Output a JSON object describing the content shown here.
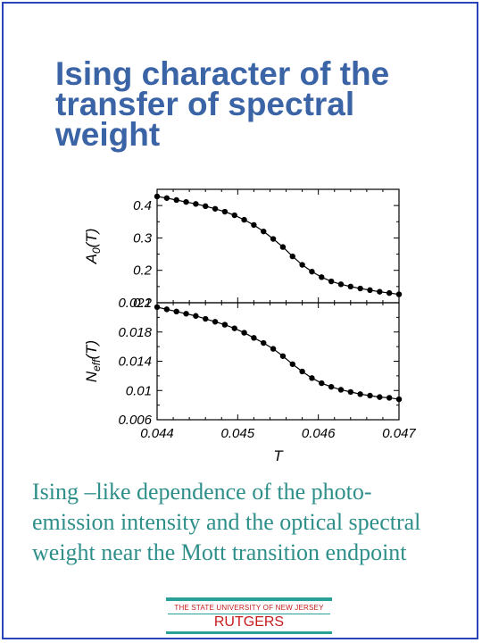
{
  "slide": {
    "title_lines": [
      "Ising character of the",
      "transfer of spectral",
      "weight"
    ],
    "caption_lines": [
      " Ising –like dependence of the photo-",
      "emission intensity and the optical spectral",
      "weight near the Mott transition endpoint"
    ],
    "logo": {
      "university": "THE STATE UNIVERSITY OF NEW JERSEY",
      "name": "RUTGERS",
      "rule_color": "#2aa198",
      "text_color": "#c61c1c"
    },
    "frame_color": "#2a43b8",
    "title_color": "#3a64a6",
    "caption_color": "#2e8f8a"
  },
  "chart_data": [
    {
      "type": "line",
      "ylabel_base": "A",
      "ylabel_sub": "0",
      "ylabel_tail": "(T)",
      "xlim": [
        0.044,
        0.047
      ],
      "ylim": [
        0.1,
        0.45
      ],
      "yticks": [
        "0.1",
        "0.2",
        "0.3",
        "0.4"
      ],
      "ytick_values": [
        0.1,
        0.2,
        0.3,
        0.4
      ],
      "xticks": [
        0.044,
        0.045,
        0.046,
        0.047
      ],
      "x": [
        0.044,
        0.04412,
        0.04424,
        0.04436,
        0.04448,
        0.0446,
        0.04472,
        0.04484,
        0.04496,
        0.04508,
        0.0452,
        0.04532,
        0.04544,
        0.04556,
        0.04568,
        0.0458,
        0.04592,
        0.04604,
        0.04616,
        0.04628,
        0.0464,
        0.04652,
        0.04664,
        0.04676,
        0.04688,
        0.047
      ],
      "y": [
        0.428,
        0.423,
        0.417,
        0.411,
        0.405,
        0.398,
        0.39,
        0.381,
        0.37,
        0.356,
        0.34,
        0.32,
        0.297,
        0.272,
        0.243,
        0.217,
        0.196,
        0.179,
        0.166,
        0.157,
        0.15,
        0.144,
        0.139,
        0.134,
        0.13,
        0.126
      ],
      "marker": "circle",
      "grid": false
    },
    {
      "type": "line",
      "ylabel_base": "N",
      "ylabel_sub": "eff",
      "ylabel_tail": "(T)",
      "xlabel": "T",
      "xlim": [
        0.044,
        0.047
      ],
      "ylim": [
        0.006,
        0.022
      ],
      "yticks": [
        "0.006",
        "0.01",
        "0.014",
        "0.018",
        "0.022"
      ],
      "ytick_values": [
        0.006,
        0.01,
        0.014,
        0.018,
        0.022
      ],
      "xticks": [
        "0.044",
        "0.045",
        "0.046",
        "0.047"
      ],
      "xtick_values": [
        0.044,
        0.045,
        0.046,
        0.047
      ],
      "x": [
        0.044,
        0.04412,
        0.04424,
        0.04436,
        0.04448,
        0.0446,
        0.04472,
        0.04484,
        0.04496,
        0.04508,
        0.0452,
        0.04532,
        0.04544,
        0.04556,
        0.04568,
        0.0458,
        0.04592,
        0.04604,
        0.04616,
        0.04628,
        0.0464,
        0.04652,
        0.04664,
        0.04676,
        0.04688,
        0.047
      ],
      "y": [
        0.0214,
        0.0211,
        0.0208,
        0.0205,
        0.0202,
        0.0198,
        0.0194,
        0.019,
        0.0185,
        0.0179,
        0.0172,
        0.0165,
        0.0157,
        0.0147,
        0.0136,
        0.0126,
        0.0117,
        0.011,
        0.0105,
        0.0101,
        0.0098,
        0.0095,
        0.0093,
        0.0091,
        0.009,
        0.0088
      ],
      "marker": "circle",
      "grid": false
    }
  ]
}
